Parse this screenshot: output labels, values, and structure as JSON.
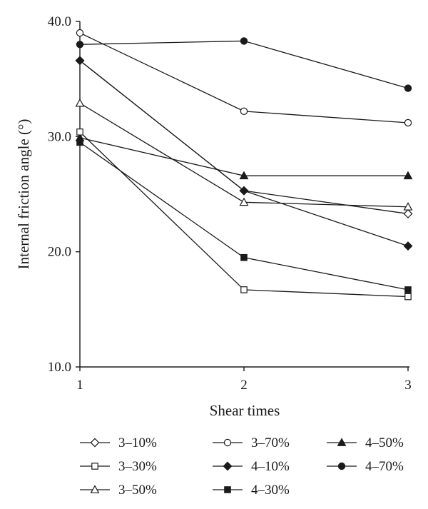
{
  "chart_data": {
    "type": "line",
    "xlabel": "Shear times",
    "ylabel": "Internal friction angle (°)",
    "x": [
      1,
      2,
      3
    ],
    "x_tick_labels": [
      "1",
      "2",
      "3"
    ],
    "y_tick_labels": [
      "10.0",
      "20.0",
      "30.0",
      "40.0"
    ],
    "xlim": [
      1,
      3
    ],
    "ylim": [
      10,
      40
    ],
    "grid": false,
    "legend_position": "bottom",
    "series": [
      {
        "name": "3–10%",
        "marker": "diamond-open",
        "values": [
          36.6,
          25.3,
          23.3
        ]
      },
      {
        "name": "3–70%",
        "marker": "circle-open",
        "values": [
          39.0,
          32.2,
          31.2
        ]
      },
      {
        "name": "4–50%",
        "marker": "triangle-filled",
        "values": [
          29.9,
          26.6,
          26.6
        ]
      },
      {
        "name": "3–30%",
        "marker": "square-open",
        "values": [
          30.4,
          16.7,
          16.1
        ]
      },
      {
        "name": "4–10%",
        "marker": "diamond-filled",
        "values": [
          36.6,
          25.3,
          20.5
        ]
      },
      {
        "name": "4–70%",
        "marker": "circle-filled",
        "values": [
          38.0,
          38.3,
          34.2
        ]
      },
      {
        "name": "3–50%",
        "marker": "triangle-open",
        "values": [
          32.9,
          24.3,
          23.9
        ]
      },
      {
        "name": "4–30%",
        "marker": "square-filled",
        "values": [
          29.5,
          19.5,
          16.7
        ]
      }
    ],
    "colors": {
      "line": "#1a1a1a",
      "marker_fill": "#1a1a1a",
      "background": "#ffffff"
    }
  }
}
